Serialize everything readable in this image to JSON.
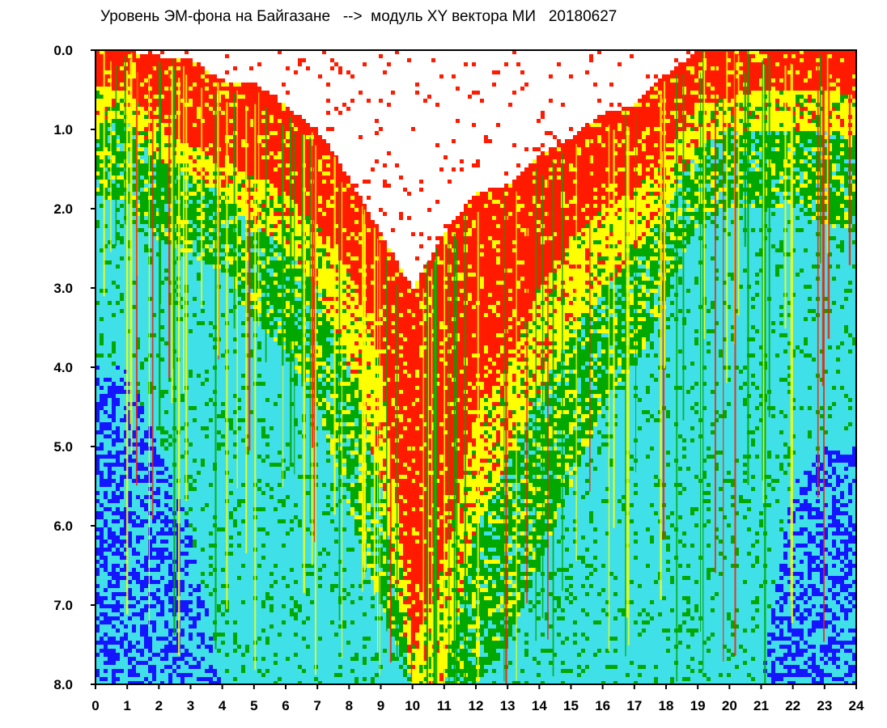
{
  "chart_data": {
    "type": "heatmap",
    "title": "Уровень ЭМ-фона на Байгазане   -->  модуль XY вектора МИ   20180627",
    "xlabel": "",
    "ylabel": "",
    "xlim": [
      0,
      24
    ],
    "ylim": [
      8.0,
      0.0
    ],
    "x_ticks": [
      "0",
      "1",
      "2",
      "3",
      "4",
      "5",
      "6",
      "7",
      "8",
      "9",
      "10",
      "11",
      "12",
      "13",
      "14",
      "15",
      "16",
      "17",
      "18",
      "19",
      "20",
      "21",
      "22",
      "23",
      "24"
    ],
    "y_ticks": [
      "0.0",
      "1.0",
      "2.0",
      "3.0",
      "4.0",
      "5.0",
      "6.0",
      "7.0",
      "8.0"
    ],
    "grid": false,
    "color_levels": [
      "#1515ff",
      "#40e0e8",
      "#00a800",
      "#ffff00",
      "#ff1a00"
    ],
    "x": [
      0,
      1,
      2,
      3,
      4,
      5,
      6,
      7,
      8,
      9,
      10,
      11,
      12,
      13,
      14,
      15,
      16,
      17,
      18,
      19,
      20,
      21,
      22,
      23,
      24
    ],
    "upper_edge": [
      0.0,
      0.0,
      0.1,
      0.1,
      0.4,
      0.4,
      0.7,
      1.0,
      1.6,
      2.3,
      3.0,
      2.3,
      1.8,
      1.7,
      1.3,
      1.1,
      0.8,
      0.7,
      0.3,
      0.0,
      0.0,
      0.0,
      0.0,
      0.0,
      0.0
    ],
    "red_to_yellow": [
      0.5,
      0.5,
      1.0,
      1.2,
      1.4,
      1.6,
      1.8,
      2.2,
      2.8,
      4.0,
      7.5,
      6.5,
      4.5,
      4.0,
      3.0,
      2.4,
      2.0,
      1.8,
      1.3,
      0.7,
      0.6,
      0.5,
      0.5,
      0.5,
      0.6
    ],
    "yellow_to_green": [
      0.9,
      0.9,
      1.4,
      1.6,
      1.8,
      2.2,
      2.5,
      3.0,
      4.0,
      5.5,
      8.0,
      8.0,
      6.0,
      5.2,
      4.3,
      3.6,
      3.0,
      2.6,
      2.0,
      1.2,
      1.0,
      1.0,
      1.0,
      1.0,
      1.1
    ],
    "green_to_cyan": [
      1.9,
      1.9,
      2.4,
      2.6,
      2.8,
      3.4,
      3.8,
      4.5,
      5.8,
      7.0,
      8.0,
      8.0,
      8.0,
      7.5,
      6.5,
      5.5,
      4.5,
      4.0,
      3.2,
      2.2,
      2.0,
      2.0,
      2.0,
      2.2,
      2.3
    ],
    "cyan_to_blue": [
      4.0,
      4.0,
      5.0,
      6.0,
      8.0,
      8.0,
      8.0,
      8.0,
      8.0,
      8.0,
      8.0,
      8.0,
      8.0,
      8.0,
      8.0,
      8.0,
      8.0,
      8.0,
      8.0,
      8.0,
      8.0,
      8.0,
      5.5,
      5.0,
      5.0
    ]
  }
}
